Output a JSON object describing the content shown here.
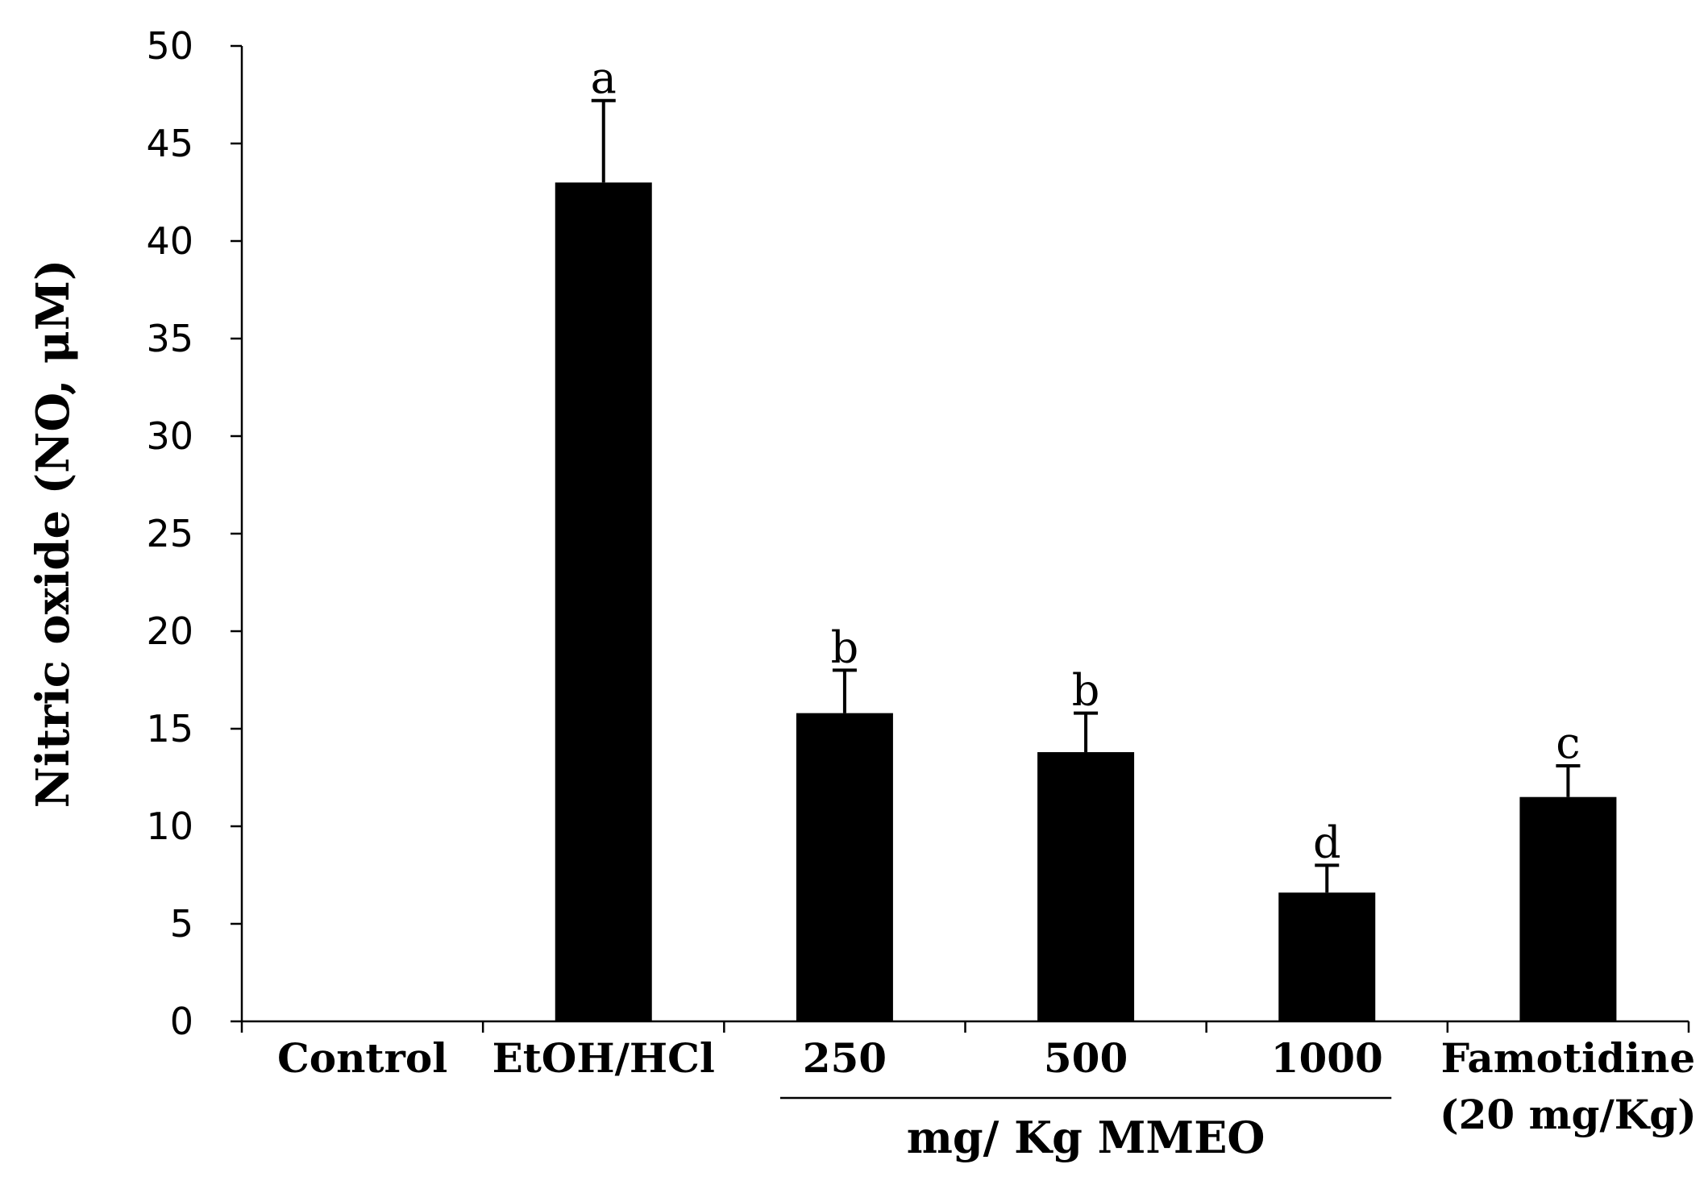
{
  "chart_data": {
    "type": "bar",
    "title": "",
    "ylabel": "Nitric oxide (NO, μM)",
    "xlabel": "",
    "ylim": [
      0,
      50
    ],
    "yticks": [
      "0",
      "5",
      "10",
      "15",
      "20",
      "25",
      "30",
      "35",
      "40",
      "45",
      "50"
    ],
    "categories": [
      {
        "label": "Control",
        "value": 0,
        "error": 0,
        "sig": ""
      },
      {
        "label": "EtOH/HCl",
        "value": 43.0,
        "error": 4.2,
        "sig": "a"
      },
      {
        "label": "250",
        "value": 15.8,
        "error": 2.2,
        "sig": "b"
      },
      {
        "label": "500",
        "value": 13.8,
        "error": 2.0,
        "sig": "b"
      },
      {
        "label": "1000",
        "value": 6.6,
        "error": 1.4,
        "sig": "d"
      },
      {
        "label": "Famotidine (20 mg/Kg)",
        "value": 11.5,
        "error": 1.6,
        "sig": "c"
      }
    ],
    "group_label": "mg/ Kg MMEO",
    "bar_color": "#000000",
    "grid": false,
    "legend": "none"
  }
}
